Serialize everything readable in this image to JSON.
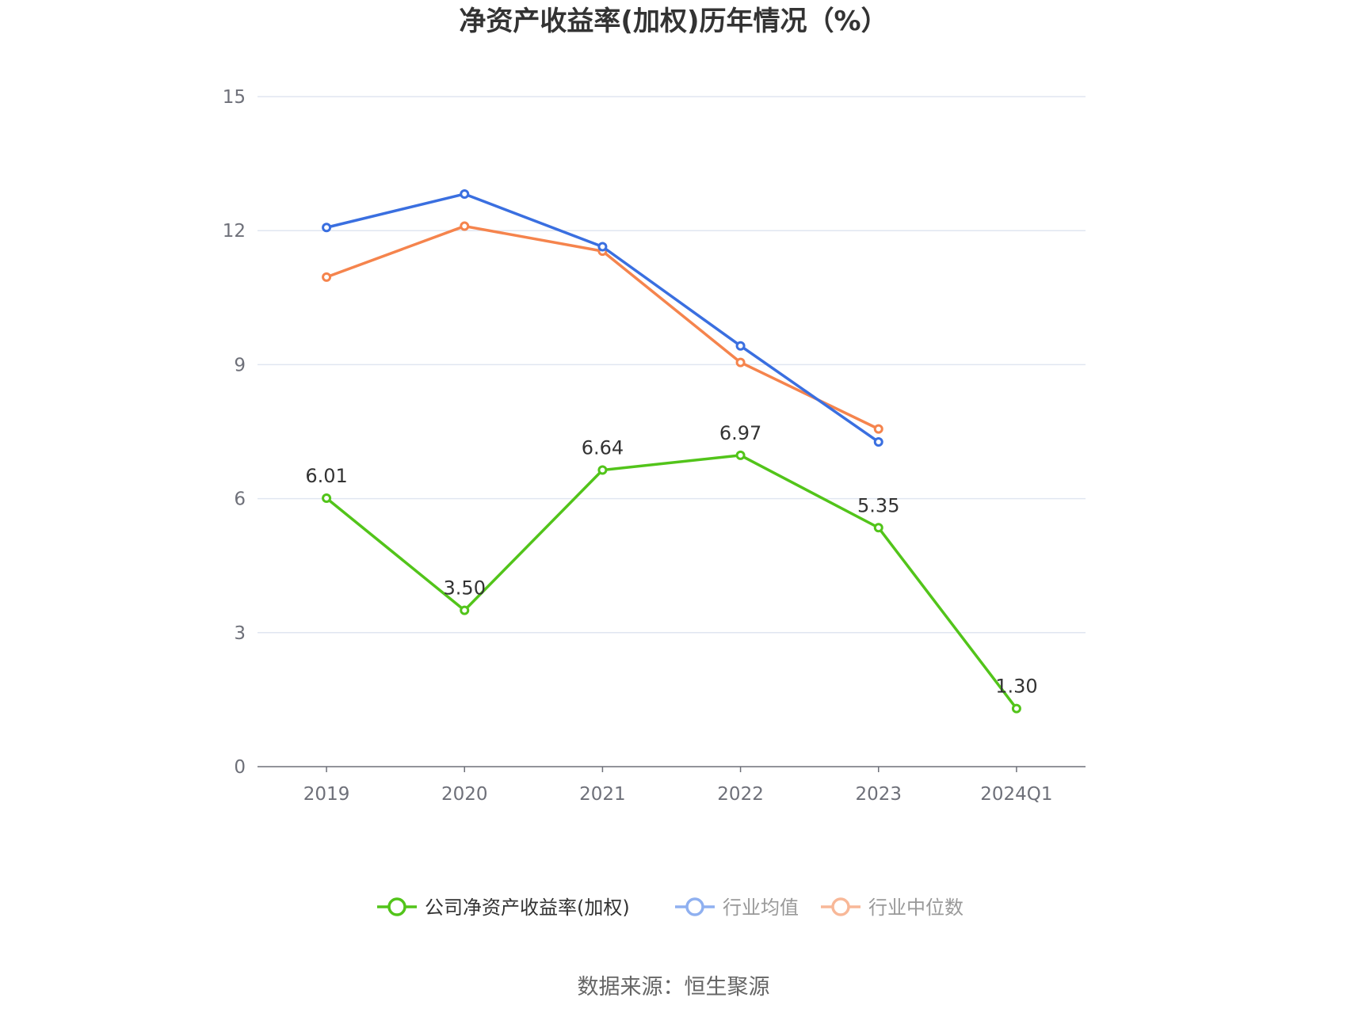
{
  "chart_data": {
    "type": "line",
    "title": "净资产收益率(加权)历年情况（%）",
    "categories": [
      "2019",
      "2020",
      "2021",
      "2022",
      "2023",
      "2024Q1"
    ],
    "ylim": [
      0,
      15
    ],
    "yticks": [
      0,
      3,
      6,
      9,
      12,
      15
    ],
    "grid": true,
    "legend_position": "bottom",
    "series": [
      {
        "name": "公司净资产收益率(加权)",
        "color": "#52c41a",
        "show_labels": true,
        "values": [
          6.01,
          3.5,
          6.64,
          6.97,
          5.35,
          1.3
        ],
        "labels": [
          "6.01",
          "3.50",
          "6.64",
          "6.97",
          "5.35",
          "1.30"
        ]
      },
      {
        "name": "行业均值",
        "color": "#3a6fe0",
        "show_labels": false,
        "values": [
          12.07,
          12.82,
          11.64,
          9.42,
          7.27,
          null
        ]
      },
      {
        "name": "行业中位数",
        "color": "#f5844d",
        "show_labels": false,
        "values": [
          10.96,
          12.1,
          11.54,
          9.05,
          7.56,
          null
        ]
      }
    ],
    "legend": [
      {
        "label": "公司净资产收益率(加权)",
        "color": "#52c41a",
        "text_color": "#333333"
      },
      {
        "label": "行业均值",
        "color": "#8fb0f0",
        "text_color": "#999999"
      },
      {
        "label": "行业中位数",
        "color": "#f8b898",
        "text_color": "#999999"
      }
    ],
    "source": "数据来源：恒生聚源"
  }
}
